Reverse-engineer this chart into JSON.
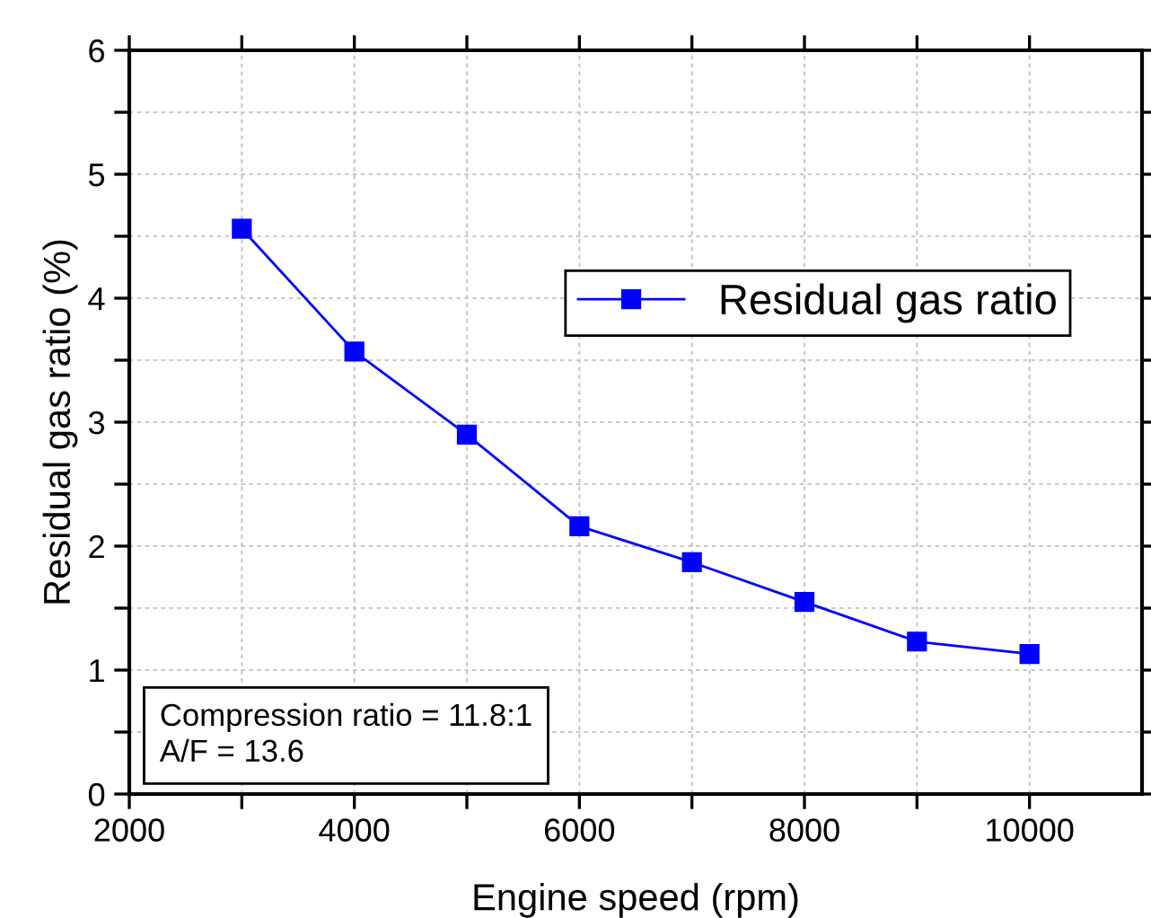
{
  "chart_data": {
    "type": "line",
    "xlabel": "Engine speed (rpm)",
    "ylabel": "Residual gas ratio (%)",
    "x": [
      3000,
      4000,
      5000,
      6000,
      7000,
      8000,
      9000,
      10000
    ],
    "series": [
      {
        "name": "Residual gas ratio",
        "color": "#0000ff",
        "values": [
          4.56,
          3.57,
          2.9,
          2.16,
          1.87,
          1.55,
          1.23,
          1.13
        ]
      }
    ],
    "xlim": [
      2000,
      11000
    ],
    "xticks": [
      2000,
      {
        "value": 3000,
        "label": null
      },
      4000,
      {
        "value": 5000,
        "label": null
      },
      6000,
      {
        "value": 7000,
        "label": null
      },
      8000,
      {
        "value": 9000,
        "label": null
      },
      10000
    ],
    "ylim": [
      0,
      6
    ],
    "yticks": [
      0,
      {
        "value": 0.5,
        "label": null
      },
      1,
      {
        "value": 1.5,
        "label": null
      },
      2,
      {
        "value": 2.5,
        "label": null
      },
      3,
      {
        "value": 3.5,
        "label": null
      },
      4,
      {
        "value": 4.5,
        "label": null
      },
      5,
      {
        "value": 5.5,
        "label": null
      },
      6
    ],
    "grid": true,
    "legend": "right",
    "marker": "square",
    "line_style": "solid",
    "annotations": [
      "Compression ratio = 11.8:1\nA/F = 13.6"
    ]
  }
}
